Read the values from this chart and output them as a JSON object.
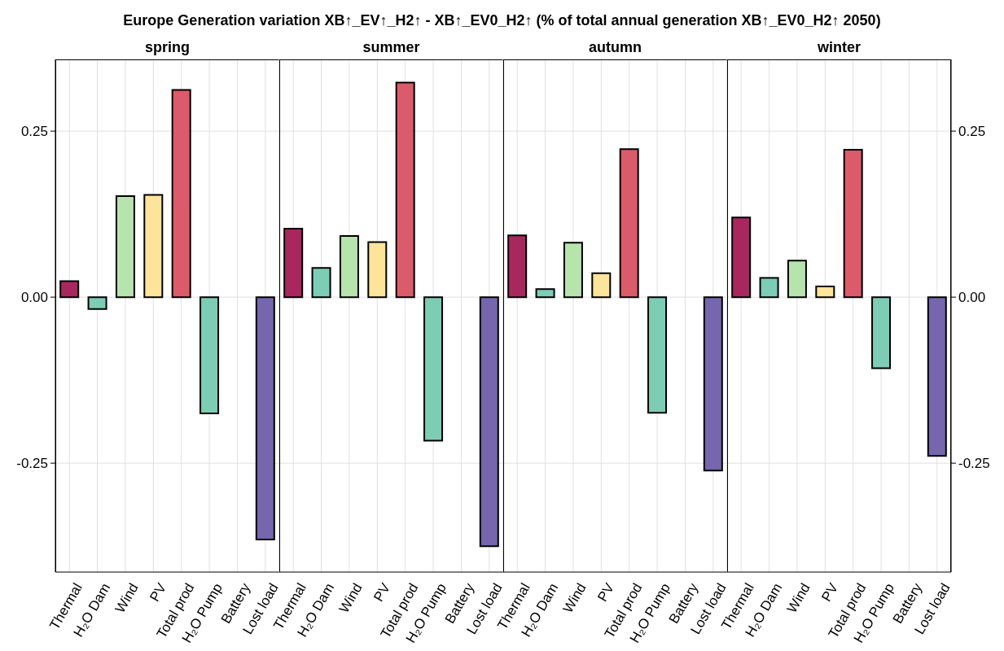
{
  "chart_data": [
    {
      "type": "bar",
      "title": "Europe  Generation variation XB↑_EV↑_H2↑ - XB↑_EV0_H2↑ (% of total annual generation XB↑_EV0_H2↑ 2050)",
      "subtitle": "spring",
      "categories": [
        "Thermal",
        "H₂O Dam",
        "Wind",
        "PV",
        "Total prod",
        "H₂O Pump",
        "Battery",
        "Lost load"
      ],
      "values": [
        0.024,
        -0.018,
        0.152,
        0.154,
        0.312,
        -0.175,
        0,
        -0.365
      ],
      "colors": [
        "#a8285e",
        "#7dcdb5",
        "#b7e3ad",
        "#fde49b",
        "#db5b6a",
        "#7dcdb5",
        "#cccccc",
        "#7566ae"
      ],
      "ylim": [
        -0.414,
        0.358
      ],
      "yticks": [
        0.25,
        {
          "value": 0,
          "label": "0.00"
        },
        -0.25
      ],
      "grid": true
    },
    {
      "type": "bar",
      "subtitle": "summer",
      "categories": [
        "Thermal",
        "H₂O Dam",
        "Wind",
        "PV",
        "Total prod",
        "H₂O Pump",
        "Battery",
        "Lost load"
      ],
      "values": [
        0.103,
        0.044,
        0.092,
        0.083,
        0.323,
        -0.216,
        0,
        -0.375
      ],
      "colors": [
        "#a8285e",
        "#7dcdb5",
        "#b7e3ad",
        "#fde49b",
        "#db5b6a",
        "#7dcdb5",
        "#cccccc",
        "#7566ae"
      ],
      "ylim": [
        -0.414,
        0.358
      ],
      "yticks": [
        0.25,
        0,
        -0.25
      ],
      "grid": true,
      "tick_labels": "x"
    },
    {
      "type": "bar",
      "subtitle": "autumn",
      "categories": [
        "Thermal",
        "H₂O Dam",
        "Wind",
        "PV",
        "Total prod",
        "H₂O Pump",
        "Battery",
        "Lost load"
      ],
      "values": [
        0.093,
        0.012,
        0.082,
        0.036,
        0.223,
        -0.174,
        0,
        -0.261
      ],
      "colors": [
        "#a8285e",
        "#7dcdb5",
        "#b7e3ad",
        "#fde49b",
        "#db5b6a",
        "#7dcdb5",
        "#cccccc",
        "#7566ae"
      ],
      "ylim": [
        -0.414,
        0.358
      ],
      "yticks": [
        0.25,
        0,
        -0.25
      ],
      "grid": true,
      "tick_labels": "x"
    },
    {
      "type": "bar",
      "subtitle": "winter",
      "categories": [
        "Thermal",
        "H₂O Dam",
        "Wind",
        "PV",
        "Total prod",
        "H₂O Pump",
        "Battery",
        "Lost load"
      ],
      "values": [
        0.12,
        0.029,
        0.055,
        0.016,
        0.222,
        -0.107,
        0,
        -0.239
      ],
      "colors": [
        "#a8285e",
        "#7dcdb5",
        "#b7e3ad",
        "#fde49b",
        "#db5b6a",
        "#7dcdb5",
        "#cccccc",
        "#7566ae"
      ],
      "ylim": [
        -0.414,
        0.358
      ],
      "yticks": [
        0.25,
        {
          "value": 0,
          "label": "0.00"
        },
        -0.25
      ],
      "grid": true
    }
  ]
}
